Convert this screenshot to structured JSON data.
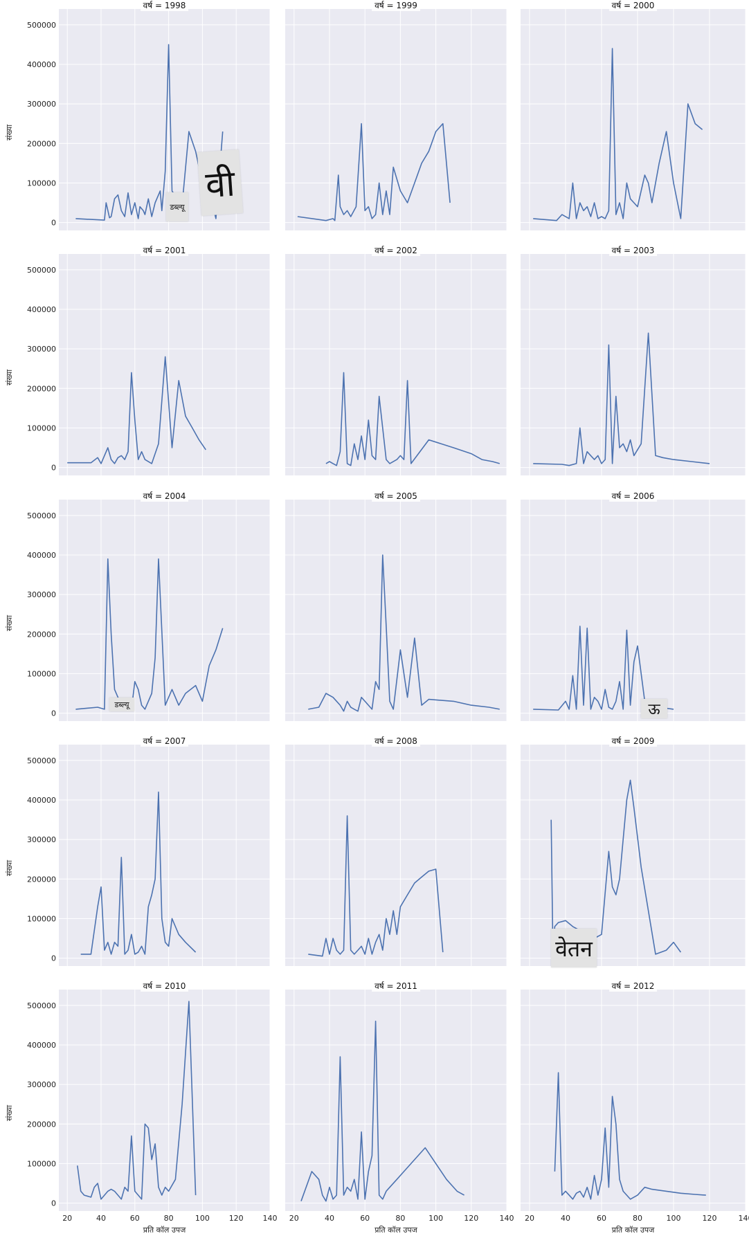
{
  "chart_data": {
    "type": "line",
    "layout": "facet-grid",
    "facet_label_prefix": "वर्ष = ",
    "xlabel": "प्रति कॉल उपज",
    "ylabel": "संख्या",
    "xlim": [
      15,
      140
    ],
    "ylim": [
      -20000,
      540000
    ],
    "xticks": [
      20,
      40,
      60,
      80,
      100,
      120,
      140
    ],
    "yticks": [
      0,
      100000,
      200000,
      300000,
      400000,
      500000
    ],
    "line_color": "#4c72b0",
    "facets": [
      {
        "year": "1998",
        "x": [
          25,
          38,
          42,
          43,
          45,
          46,
          48,
          50,
          52,
          54,
          56,
          58,
          60,
          62,
          63,
          65,
          66,
          68,
          70,
          72,
          75,
          76,
          78,
          80,
          82,
          85,
          88,
          92,
          96,
          100,
          104,
          108,
          112
        ],
        "y": [
          10000,
          7000,
          6000,
          50000,
          12000,
          15000,
          60000,
          70000,
          30000,
          15000,
          75000,
          20000,
          50000,
          10000,
          40000,
          30000,
          20000,
          60000,
          15000,
          50000,
          80000,
          30000,
          130000,
          450000,
          80000,
          60000,
          45000,
          230000,
          180000,
          100000,
          80000,
          10000,
          230000
        ]
      },
      {
        "year": "1999",
        "x": [
          22,
          38,
          42,
          43,
          45,
          46,
          48,
          50,
          52,
          55,
          58,
          60,
          62,
          64,
          66,
          68,
          70,
          72,
          74,
          76,
          80,
          84,
          88,
          92,
          96,
          100,
          104,
          108
        ],
        "y": [
          15000,
          5000,
          10000,
          5000,
          120000,
          40000,
          20000,
          30000,
          15000,
          40000,
          250000,
          30000,
          40000,
          10000,
          20000,
          100000,
          20000,
          80000,
          20000,
          140000,
          80000,
          50000,
          100000,
          150000,
          180000,
          230000,
          250000,
          50000
        ]
      },
      {
        "year": "2000",
        "x": [
          22,
          35,
          38,
          42,
          44,
          46,
          48,
          50,
          52,
          54,
          56,
          58,
          60,
          62,
          64,
          66,
          68,
          70,
          72,
          74,
          76,
          78,
          80,
          84,
          86,
          88,
          92,
          96,
          100,
          104,
          108,
          112,
          116
        ],
        "y": [
          10000,
          5000,
          20000,
          10000,
          100000,
          10000,
          50000,
          30000,
          40000,
          15000,
          50000,
          10000,
          15000,
          10000,
          30000,
          440000,
          20000,
          50000,
          10000,
          100000,
          60000,
          50000,
          40000,
          120000,
          100000,
          50000,
          150000,
          230000,
          100000,
          10000,
          300000,
          250000,
          235000
        ]
      },
      {
        "year": "2001",
        "x": [
          20,
          34,
          38,
          40,
          42,
          44,
          46,
          48,
          50,
          52,
          54,
          56,
          58,
          60,
          62,
          64,
          66,
          70,
          74,
          78,
          82,
          86,
          90,
          94,
          98,
          102
        ],
        "y": [
          12000,
          12000,
          25000,
          10000,
          30000,
          50000,
          20000,
          10000,
          25000,
          30000,
          20000,
          40000,
          240000,
          120000,
          20000,
          40000,
          20000,
          10000,
          60000,
          280000,
          50000,
          220000,
          130000,
          100000,
          70000,
          45000
        ]
      },
      {
        "year": "2002",
        "x": [
          38,
          40,
          42,
          44,
          46,
          48,
          50,
          52,
          54,
          56,
          58,
          60,
          62,
          64,
          66,
          68,
          70,
          72,
          74,
          78,
          80,
          82,
          84,
          86,
          96,
          110,
          120,
          126,
          132,
          136
        ],
        "y": [
          10000,
          15000,
          10000,
          5000,
          40000,
          240000,
          10000,
          5000,
          60000,
          20000,
          80000,
          20000,
          120000,
          30000,
          20000,
          180000,
          100000,
          20000,
          10000,
          20000,
          30000,
          20000,
          220000,
          10000,
          70000,
          50000,
          35000,
          20000,
          15000,
          10000
        ]
      },
      {
        "year": "2003",
        "x": [
          22,
          38,
          42,
          46,
          48,
          50,
          52,
          54,
          56,
          58,
          60,
          62,
          64,
          66,
          68,
          70,
          72,
          74,
          76,
          78,
          82,
          86,
          90,
          94,
          100,
          110,
          120
        ],
        "y": [
          10000,
          8000,
          5000,
          10000,
          100000,
          10000,
          40000,
          30000,
          20000,
          30000,
          10000,
          20000,
          310000,
          10000,
          180000,
          50000,
          60000,
          40000,
          70000,
          30000,
          60000,
          340000,
          30000,
          25000,
          20000,
          15000,
          10000
        ]
      },
      {
        "year": "2004",
        "x": [
          25,
          38,
          42,
          44,
          46,
          48,
          50,
          52,
          54,
          56,
          58,
          60,
          62,
          64,
          66,
          68,
          70,
          72,
          74,
          78,
          82,
          86,
          90,
          96,
          100,
          104,
          108,
          112
        ],
        "y": [
          10000,
          15000,
          10000,
          390000,
          200000,
          60000,
          40000,
          20000,
          30000,
          20000,
          10000,
          80000,
          60000,
          20000,
          10000,
          30000,
          50000,
          140000,
          390000,
          20000,
          60000,
          20000,
          50000,
          70000,
          30000,
          120000,
          160000,
          215000
        ]
      },
      {
        "year": "2005",
        "x": [
          28,
          34,
          38,
          42,
          46,
          48,
          50,
          52,
          54,
          56,
          58,
          60,
          62,
          64,
          66,
          68,
          70,
          72,
          74,
          76,
          80,
          84,
          88,
          92,
          96,
          110,
          120,
          130,
          136
        ],
        "y": [
          10000,
          15000,
          50000,
          40000,
          20000,
          5000,
          30000,
          15000,
          10000,
          5000,
          40000,
          30000,
          20000,
          10000,
          80000,
          60000,
          400000,
          220000,
          30000,
          10000,
          160000,
          40000,
          190000,
          20000,
          35000,
          30000,
          20000,
          15000,
          10000
        ]
      },
      {
        "year": "2006",
        "x": [
          22,
          36,
          40,
          42,
          44,
          46,
          48,
          50,
          52,
          54,
          56,
          58,
          60,
          62,
          64,
          66,
          68,
          70,
          72,
          74,
          76,
          78,
          80,
          82,
          84,
          88,
          92,
          100
        ],
        "y": [
          10000,
          8000,
          30000,
          10000,
          95000,
          10000,
          220000,
          20000,
          215000,
          10000,
          40000,
          30000,
          10000,
          60000,
          15000,
          10000,
          30000,
          80000,
          10000,
          210000,
          20000,
          130000,
          170000,
          100000,
          30000,
          20000,
          15000,
          10000
        ]
      },
      {
        "year": "2007",
        "x": [
          28,
          34,
          38,
          40,
          42,
          44,
          46,
          48,
          50,
          52,
          54,
          56,
          58,
          60,
          62,
          64,
          66,
          68,
          70,
          72,
          74,
          76,
          78,
          80,
          82,
          86,
          90,
          96
        ],
        "y": [
          10000,
          10000,
          130000,
          180000,
          20000,
          40000,
          10000,
          40000,
          30000,
          255000,
          10000,
          20000,
          60000,
          10000,
          15000,
          30000,
          10000,
          130000,
          160000,
          200000,
          420000,
          100000,
          40000,
          30000,
          100000,
          60000,
          40000,
          15000
        ]
      },
      {
        "year": "2008",
        "x": [
          28,
          36,
          38,
          40,
          42,
          44,
          46,
          48,
          50,
          52,
          54,
          56,
          58,
          60,
          62,
          64,
          66,
          68,
          70,
          72,
          74,
          76,
          78,
          80,
          84,
          88,
          92,
          96,
          100,
          104
        ],
        "y": [
          10000,
          5000,
          50000,
          10000,
          50000,
          20000,
          10000,
          20000,
          360000,
          20000,
          10000,
          20000,
          30000,
          10000,
          50000,
          10000,
          40000,
          60000,
          20000,
          100000,
          60000,
          120000,
          60000,
          130000,
          160000,
          190000,
          205000,
          220000,
          225000,
          15000
        ]
      },
      {
        "year": "2009",
        "x": [
          32,
          33,
          34,
          36,
          40,
          44,
          48,
          52,
          56,
          60,
          64,
          66,
          68,
          70,
          72,
          74,
          76,
          78,
          82,
          86,
          90,
          96,
          100,
          104
        ],
        "y": [
          350000,
          10000,
          80000,
          90000,
          95000,
          80000,
          70000,
          60000,
          50000,
          60000,
          270000,
          180000,
          160000,
          200000,
          300000,
          400000,
          450000,
          380000,
          230000,
          120000,
          10000,
          20000,
          40000,
          15000
        ]
      },
      {
        "year": "2010",
        "x": [
          26,
          28,
          30,
          34,
          36,
          38,
          40,
          42,
          44,
          46,
          48,
          50,
          52,
          54,
          56,
          58,
          60,
          62,
          64,
          66,
          68,
          70,
          72,
          74,
          76,
          78,
          80,
          84,
          88,
          92,
          96
        ],
        "y": [
          95000,
          30000,
          20000,
          15000,
          40000,
          50000,
          10000,
          20000,
          30000,
          35000,
          30000,
          20000,
          10000,
          40000,
          30000,
          170000,
          30000,
          20000,
          10000,
          200000,
          190000,
          110000,
          150000,
          40000,
          20000,
          40000,
          30000,
          60000,
          250000,
          510000,
          20000
        ]
      },
      {
        "year": "2011",
        "x": [
          24,
          30,
          34,
          36,
          38,
          40,
          42,
          44,
          46,
          48,
          50,
          52,
          54,
          56,
          58,
          60,
          62,
          64,
          66,
          68,
          70,
          72,
          74,
          78,
          82,
          86,
          90,
          94,
          100,
          106,
          112,
          116
        ],
        "y": [
          5000,
          80000,
          60000,
          20000,
          5000,
          40000,
          10000,
          20000,
          370000,
          20000,
          40000,
          30000,
          60000,
          10000,
          180000,
          10000,
          80000,
          120000,
          460000,
          20000,
          10000,
          30000,
          40000,
          60000,
          80000,
          100000,
          120000,
          140000,
          100000,
          60000,
          30000,
          20000
        ]
      },
      {
        "year": "2012",
        "x": [
          34,
          36,
          38,
          40,
          42,
          44,
          46,
          48,
          50,
          52,
          54,
          56,
          58,
          60,
          62,
          64,
          66,
          68,
          70,
          72,
          76,
          80,
          84,
          88,
          96,
          104,
          112,
          118
        ],
        "y": [
          80000,
          330000,
          20000,
          30000,
          20000,
          10000,
          25000,
          30000,
          15000,
          40000,
          10000,
          70000,
          20000,
          60000,
          190000,
          40000,
          270000,
          200000,
          60000,
          30000,
          10000,
          20000,
          40000,
          35000,
          30000,
          25000,
          22000,
          20000
        ]
      }
    ]
  },
  "overlays": [
    {
      "text": "वी",
      "size": 52
    },
    {
      "text": "डब्ल्यू",
      "size": 11
    },
    {
      "text": "डब्ल्यू",
      "size": 11
    },
    {
      "text": "ऊ",
      "size": 22
    },
    {
      "text": "वेतन",
      "size": 32
    }
  ]
}
